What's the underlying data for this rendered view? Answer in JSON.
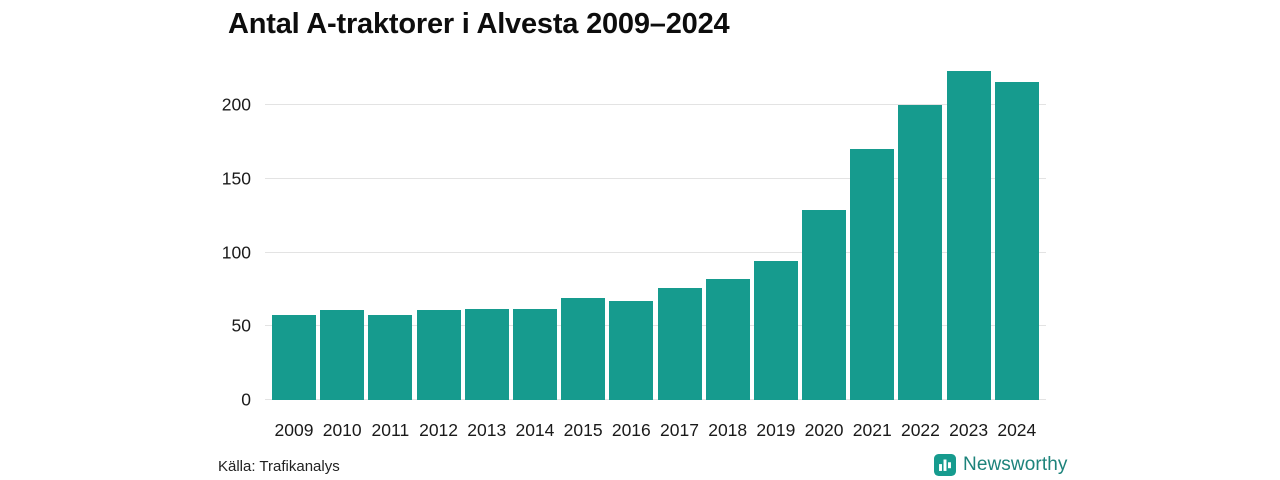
{
  "title": "Antal A-traktorer i Alvesta 2009–2024",
  "footer": {
    "source": "Källa: Trafikanalys",
    "brand": "Newsworthy"
  },
  "colors": {
    "bar": "#169b8e",
    "brand_icon": "#169b8e",
    "brand_text": "#1d837b",
    "gridline": "#e3e3e3"
  },
  "chart_data": {
    "type": "bar",
    "title": "Antal A-traktorer i Alvesta 2009–2024",
    "categories": [
      "2009",
      "2010",
      "2011",
      "2012",
      "2013",
      "2014",
      "2015",
      "2016",
      "2017",
      "2018",
      "2019",
      "2020",
      "2021",
      "2022",
      "2023",
      "2024"
    ],
    "values": [
      58,
      61,
      58,
      61,
      62,
      62,
      69,
      67,
      76,
      82,
      94,
      129,
      170,
      200,
      223,
      216
    ],
    "xlabel": "",
    "ylabel": "",
    "ylim": [
      0,
      230
    ],
    "yticks": [
      0,
      50,
      100,
      150,
      200
    ],
    "bar_color": "#169b8e",
    "grid": true,
    "legend": "none"
  }
}
